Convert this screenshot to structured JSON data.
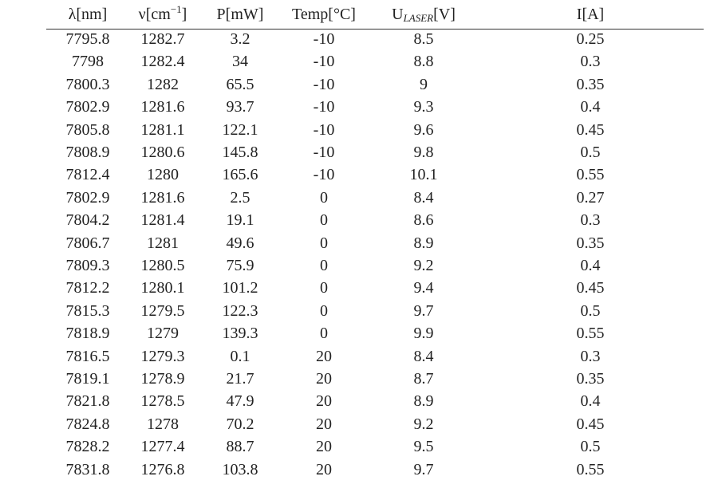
{
  "table": {
    "header": [
      [
        "λ[nm]"
      ],
      [
        "ν[cm",
        "−1",
        "]"
      ],
      [
        "P[mW]"
      ],
      [
        "Temp[°C]"
      ],
      [
        "U",
        "LASER",
        "[V]"
      ],
      [
        "I[A]"
      ]
    ],
    "rows": [
      [
        "7795.8",
        "1282.7",
        "3.2",
        "-10",
        "8.5",
        "0.25"
      ],
      [
        "7798",
        "1282.4",
        "34",
        "-10",
        "8.8",
        "0.3"
      ],
      [
        "7800.3",
        "1282",
        "65.5",
        "-10",
        "9",
        "0.35"
      ],
      [
        "7802.9",
        "1281.6",
        "93.7",
        "-10",
        "9.3",
        "0.4"
      ],
      [
        "7805.8",
        "1281.1",
        "122.1",
        "-10",
        "9.6",
        "0.45"
      ],
      [
        "7808.9",
        "1280.6",
        "145.8",
        "-10",
        "9.8",
        "0.5"
      ],
      [
        "7812.4",
        "1280",
        "165.6",
        "-10",
        "10.1",
        "0.55"
      ],
      [
        "7802.9",
        "1281.6",
        "2.5",
        "0",
        "8.4",
        "0.27"
      ],
      [
        "7804.2",
        "1281.4",
        "19.1",
        "0",
        "8.6",
        "0.3"
      ],
      [
        "7806.7",
        "1281",
        "49.6",
        "0",
        "8.9",
        "0.35"
      ],
      [
        "7809.3",
        "1280.5",
        "75.9",
        "0",
        "9.2",
        "0.4"
      ],
      [
        "7812.2",
        "1280.1",
        "101.2",
        "0",
        "9.4",
        "0.45"
      ],
      [
        "7815.3",
        "1279.5",
        "122.3",
        "0",
        "9.7",
        "0.5"
      ],
      [
        "7818.9",
        "1279",
        "139.3",
        "0",
        "9.9",
        "0.55"
      ],
      [
        "7816.5",
        "1279.3",
        "0.1",
        "20",
        "8.4",
        "0.3"
      ],
      [
        "7819.1",
        "1278.9",
        "21.7",
        "20",
        "8.7",
        "0.35"
      ],
      [
        "7821.8",
        "1278.5",
        "47.9",
        "20",
        "8.9",
        "0.4"
      ],
      [
        "7824.8",
        "1278",
        "70.2",
        "20",
        "9.2",
        "0.45"
      ],
      [
        "7828.2",
        "1277.4",
        "88.7",
        "20",
        "9.5",
        "0.5"
      ],
      [
        "7831.8",
        "1276.8",
        "103.8",
        "20",
        "9.7",
        "0.55"
      ]
    ]
  }
}
